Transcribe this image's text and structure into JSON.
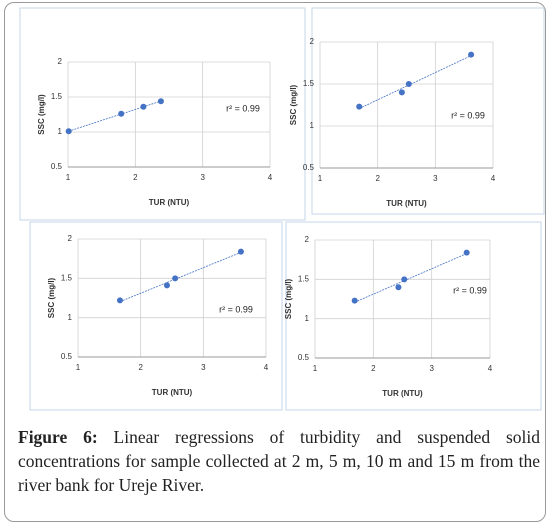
{
  "chart_data": [
    {
      "type": "scatter",
      "x": [
        1.01,
        1.79,
        2.12,
        2.38
      ],
      "values": [
        1.01,
        1.26,
        1.36,
        1.44
      ],
      "color": "#4472c4",
      "xlabel": "TUR (NTU)",
      "ylabel": "SSC (mg/l)",
      "annotation": "r² = 0.99",
      "xlim": [
        1,
        4
      ],
      "ylim": [
        0.5,
        2
      ],
      "xticks": [
        1,
        2,
        3,
        4
      ],
      "yticks": [
        0.5,
        1,
        1.5,
        2
      ],
      "grid": true,
      "trendline": true
    },
    {
      "type": "scatter",
      "x": [
        1.68,
        2.42,
        2.54,
        3.62
      ],
      "values": [
        1.23,
        1.4,
        1.5,
        1.85
      ],
      "color": "#4472c4",
      "xlabel": "TUR (NTU)",
      "ylabel": "SSC (mg/l)",
      "annotation": "r² = 0.99",
      "xlim": [
        1,
        4
      ],
      "ylim": [
        0.5,
        2
      ],
      "xticks": [
        1,
        2,
        3,
        4
      ],
      "yticks": [
        0.5,
        1,
        1.5,
        2
      ],
      "grid": true,
      "trendline": true
    },
    {
      "type": "scatter",
      "x": [
        1.67,
        2.42,
        2.55,
        3.6
      ],
      "values": [
        1.22,
        1.41,
        1.5,
        1.84
      ],
      "color": "#4472c4",
      "xlabel": "TUR (NTU)",
      "ylabel": "SSC (mg/l)",
      "annotation": "r² = 0.99",
      "xlim": [
        1,
        4
      ],
      "ylim": [
        0.5,
        2
      ],
      "xticks": [
        1,
        2,
        3,
        4
      ],
      "yticks": [
        0.5,
        1,
        1.5,
        2
      ],
      "grid": true,
      "trendline": true
    },
    {
      "type": "scatter",
      "x": [
        1.68,
        2.43,
        2.53,
        3.6
      ],
      "values": [
        1.23,
        1.4,
        1.5,
        1.84
      ],
      "color": "#4472c4",
      "xlabel": "TUR (NTU)",
      "ylabel": "SSC (mg/l)",
      "annotation": "r² = 0.99",
      "xlim": [
        1,
        4
      ],
      "ylim": [
        0.5,
        2
      ],
      "xticks": [
        1,
        2,
        3,
        4
      ],
      "yticks": [
        0.5,
        1,
        1.5,
        2
      ],
      "grid": true,
      "trendline": true
    }
  ],
  "caption": {
    "label": "Figure 6:",
    "text": "Linear regressions of turbidity and suspended solid concentrations for sample collected at 2 m, 5 m, 10 m and 15 m from the river bank for Ureje River."
  }
}
